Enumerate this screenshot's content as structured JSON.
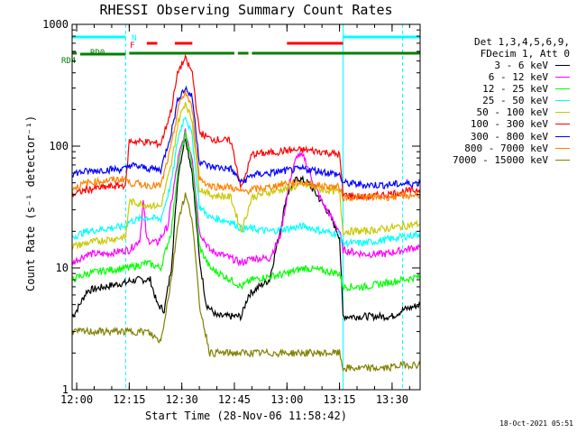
{
  "chart_data": {
    "type": "line",
    "title": "RHESSI Observing Summary Count Rates",
    "xlabel": "Start Time (28-Nov-06 11:58:42)",
    "ylabel": "Count Rate (s⁻¹ detector⁻¹)",
    "y_scale": "log",
    "ylim": [
      1,
      1000
    ],
    "xlim": [
      "11:58:42",
      "13:38:00"
    ],
    "x_ticks": [
      "12:00",
      "12:15",
      "12:30",
      "12:45",
      "13:00",
      "13:15",
      "13:30"
    ],
    "y_ticks": [
      "1",
      "10",
      "100",
      "1000"
    ],
    "legend_header": [
      "Det 1,3,4,5,6,9,",
      "FDecim 1, Att 0"
    ],
    "legend_position": "right, outside plot",
    "series": [
      {
        "name": "3 - 6 keV",
        "color": "#000000",
        "points": [
          [
            "11:58:42",
            4
          ],
          [
            "12:00",
            4.5
          ],
          [
            "12:03",
            6.5
          ],
          [
            "12:08",
            7
          ],
          [
            "12:13",
            7.5
          ],
          [
            "12:14",
            7.5
          ],
          [
            "12:15",
            7.8
          ],
          [
            "12:18",
            8
          ],
          [
            "12:21",
            8
          ],
          [
            "12:23",
            5
          ],
          [
            "12:25",
            4.5
          ],
          [
            "12:27",
            10
          ],
          [
            "12:29",
            60
          ],
          [
            "12:31",
            120
          ],
          [
            "12:33",
            60
          ],
          [
            "12:35",
            12
          ],
          [
            "12:37",
            5
          ],
          [
            "12:40",
            4
          ],
          [
            "12:44",
            4
          ],
          [
            "12:47",
            4
          ],
          [
            "12:49",
            6
          ],
          [
            "12:52",
            7
          ],
          [
            "12:55",
            8
          ],
          [
            "12:58",
            20
          ],
          [
            "13:00",
            40
          ],
          [
            "13:03",
            55
          ],
          [
            "13:06",
            50
          ],
          [
            "13:09",
            38
          ],
          [
            "13:12",
            28
          ],
          [
            "13:15",
            18
          ],
          [
            "13:16",
            4
          ],
          [
            "13:20",
            4
          ],
          [
            "13:25",
            4
          ],
          [
            "13:30",
            4
          ],
          [
            "13:33",
            4.5
          ],
          [
            "13:38",
            5
          ]
        ]
      },
      {
        "name": "6 - 12 keV",
        "color": "#ff00ff",
        "points": [
          [
            "11:58:42",
            11
          ],
          [
            "12:03",
            13
          ],
          [
            "12:08",
            13
          ],
          [
            "12:14",
            14
          ],
          [
            "12:15",
            14
          ],
          [
            "12:18",
            17
          ],
          [
            "12:19",
            35
          ],
          [
            "12:20",
            17
          ],
          [
            "12:23",
            16
          ],
          [
            "12:26",
            22
          ],
          [
            "12:29",
            80
          ],
          [
            "12:31",
            130
          ],
          [
            "12:33",
            80
          ],
          [
            "12:35",
            20
          ],
          [
            "12:38",
            14
          ],
          [
            "12:44",
            12
          ],
          [
            "12:47",
            11
          ],
          [
            "12:50",
            12
          ],
          [
            "12:55",
            12
          ],
          [
            "12:58",
            18
          ],
          [
            "13:01",
            55
          ],
          [
            "13:03",
            85
          ],
          [
            "13:05",
            80
          ],
          [
            "13:07",
            55
          ],
          [
            "13:10",
            35
          ],
          [
            "13:13",
            25
          ],
          [
            "13:15",
            20
          ],
          [
            "13:16",
            14
          ],
          [
            "13:22",
            13
          ],
          [
            "13:28",
            13
          ],
          [
            "13:33",
            14
          ],
          [
            "13:38",
            15
          ]
        ]
      },
      {
        "name": "12 - 25 keV",
        "color": "#00ff00",
        "points": [
          [
            "11:58:42",
            8
          ],
          [
            "12:03",
            9
          ],
          [
            "12:08",
            9.5
          ],
          [
            "12:14",
            10
          ],
          [
            "12:15",
            10
          ],
          [
            "12:20",
            11
          ],
          [
            "12:24",
            10
          ],
          [
            "12:27",
            20
          ],
          [
            "12:29",
            70
          ],
          [
            "12:31",
            125
          ],
          [
            "12:33",
            70
          ],
          [
            "12:35",
            15
          ],
          [
            "12:38",
            10
          ],
          [
            "12:44",
            8
          ],
          [
            "12:47",
            7
          ],
          [
            "12:50",
            8
          ],
          [
            "12:55",
            8.5
          ],
          [
            "13:00",
            9
          ],
          [
            "13:05",
            10
          ],
          [
            "13:10",
            9.5
          ],
          [
            "13:15",
            9
          ],
          [
            "13:16",
            7
          ],
          [
            "13:22",
            7
          ],
          [
            "13:28",
            7.5
          ],
          [
            "13:33",
            8
          ],
          [
            "13:38",
            8.5
          ]
        ]
      },
      {
        "name": "25 - 50 keV",
        "color": "#00ffff",
        "points": [
          [
            "11:58:42",
            18
          ],
          [
            "12:03",
            20
          ],
          [
            "12:08",
            21
          ],
          [
            "12:14",
            22
          ],
          [
            "12:15",
            24
          ],
          [
            "12:20",
            26
          ],
          [
            "12:24",
            25
          ],
          [
            "12:27",
            50
          ],
          [
            "12:29",
            120
          ],
          [
            "12:31",
            180
          ],
          [
            "12:33",
            120
          ],
          [
            "12:35",
            32
          ],
          [
            "12:38",
            26
          ],
          [
            "12:44",
            24
          ],
          [
            "12:47",
            21
          ],
          [
            "12:50",
            21
          ],
          [
            "12:55",
            20
          ],
          [
            "13:00",
            21
          ],
          [
            "13:05",
            22
          ],
          [
            "13:10",
            20
          ],
          [
            "13:15",
            19
          ],
          [
            "13:16",
            16
          ],
          [
            "13:22",
            16
          ],
          [
            "13:28",
            17
          ],
          [
            "13:33",
            18
          ],
          [
            "13:38",
            19
          ]
        ]
      },
      {
        "name": "50 - 100 keV",
        "color": "#c8c800",
        "points": [
          [
            "11:58:42",
            15
          ],
          [
            "12:03",
            16
          ],
          [
            "12:08",
            17
          ],
          [
            "12:14",
            18
          ],
          [
            "12:15",
            35
          ],
          [
            "12:20",
            33
          ],
          [
            "12:24",
            32
          ],
          [
            "12:27",
            70
          ],
          [
            "12:29",
            160
          ],
          [
            "12:31",
            230
          ],
          [
            "12:33",
            160
          ],
          [
            "12:35",
            45
          ],
          [
            "12:38",
            40
          ],
          [
            "12:44",
            38
          ],
          [
            "12:47",
            20
          ],
          [
            "12:50",
            38
          ],
          [
            "12:55",
            42
          ],
          [
            "13:00",
            45
          ],
          [
            "13:05",
            48
          ],
          [
            "13:10",
            44
          ],
          [
            "13:15",
            42
          ],
          [
            "13:16",
            20
          ],
          [
            "13:22",
            20
          ],
          [
            "13:28",
            21
          ],
          [
            "13:33",
            22
          ],
          [
            "13:38",
            23
          ]
        ]
      },
      {
        "name": "100 - 300 keV",
        "color": "#ff0000",
        "points": [
          [
            "11:58:42",
            40
          ],
          [
            "12:03",
            44
          ],
          [
            "12:08",
            46
          ],
          [
            "12:14",
            48
          ],
          [
            "12:15",
            110
          ],
          [
            "12:20",
            108
          ],
          [
            "12:24",
            104
          ],
          [
            "12:27",
            200
          ],
          [
            "12:29",
            420
          ],
          [
            "12:31",
            520
          ],
          [
            "12:33",
            400
          ],
          [
            "12:35",
            130
          ],
          [
            "12:38",
            115
          ],
          [
            "12:44",
            110
          ],
          [
            "12:47",
            45
          ],
          [
            "12:50",
            86
          ],
          [
            "12:55",
            88
          ],
          [
            "13:00",
            92
          ],
          [
            "13:05",
            93
          ],
          [
            "13:10",
            90
          ],
          [
            "13:15",
            85
          ],
          [
            "13:16",
            40
          ],
          [
            "13:22",
            38
          ],
          [
            "13:28",
            40
          ],
          [
            "13:33",
            42
          ],
          [
            "13:38",
            44
          ]
        ]
      },
      {
        "name": "300 - 800 keV",
        "color": "#0000ff",
        "points": [
          [
            "11:58:42",
            60
          ],
          [
            "12:03",
            62
          ],
          [
            "12:08",
            64
          ],
          [
            "12:14",
            65
          ],
          [
            "12:15",
            70
          ],
          [
            "12:20",
            66
          ],
          [
            "12:24",
            64
          ],
          [
            "12:27",
            130
          ],
          [
            "12:29",
            250
          ],
          [
            "12:31",
            300
          ],
          [
            "12:33",
            250
          ],
          [
            "12:35",
            75
          ],
          [
            "12:38",
            68
          ],
          [
            "12:44",
            65
          ],
          [
            "12:47",
            50
          ],
          [
            "12:50",
            58
          ],
          [
            "12:55",
            60
          ],
          [
            "13:00",
            63
          ],
          [
            "13:05",
            65
          ],
          [
            "13:10",
            62
          ],
          [
            "13:15",
            58
          ],
          [
            "13:16",
            50
          ],
          [
            "13:22",
            48
          ],
          [
            "13:28",
            48
          ],
          [
            "13:33",
            49
          ],
          [
            "13:38",
            50
          ]
        ]
      },
      {
        "name": "800 - 7000 keV",
        "color": "#ff8000",
        "points": [
          [
            "11:58:42",
            45
          ],
          [
            "12:03",
            50
          ],
          [
            "12:08",
            52
          ],
          [
            "12:14",
            54
          ],
          [
            "12:15",
            50
          ],
          [
            "12:20",
            48
          ],
          [
            "12:24",
            47
          ],
          [
            "12:27",
            100
          ],
          [
            "12:29",
            210
          ],
          [
            "12:31",
            280
          ],
          [
            "12:33",
            200
          ],
          [
            "12:35",
            55
          ],
          [
            "12:38",
            47
          ],
          [
            "12:44",
            46
          ],
          [
            "12:47",
            42
          ],
          [
            "12:50",
            44
          ],
          [
            "12:55",
            46
          ],
          [
            "13:00",
            50
          ],
          [
            "13:05",
            50
          ],
          [
            "13:10",
            47
          ],
          [
            "13:15",
            46
          ],
          [
            "13:16",
            38
          ],
          [
            "13:22",
            38
          ],
          [
            "13:28",
            38
          ],
          [
            "13:33",
            39
          ],
          [
            "13:38",
            40
          ]
        ]
      },
      {
        "name": "7000 - 15000 keV",
        "color": "#808000",
        "points": [
          [
            "11:58:42",
            3
          ],
          [
            "12:03",
            3
          ],
          [
            "12:08",
            3
          ],
          [
            "12:14",
            3
          ],
          [
            "12:15",
            3
          ],
          [
            "12:20",
            3
          ],
          [
            "12:24",
            2.5
          ],
          [
            "12:27",
            8
          ],
          [
            "12:29",
            25
          ],
          [
            "12:31",
            40
          ],
          [
            "12:33",
            25
          ],
          [
            "12:35",
            5
          ],
          [
            "12:38",
            2
          ],
          [
            "12:44",
            2
          ],
          [
            "12:47",
            2
          ],
          [
            "12:50",
            2
          ],
          [
            "12:55",
            2
          ],
          [
            "13:00",
            2
          ],
          [
            "13:05",
            2
          ],
          [
            "13:10",
            2
          ],
          [
            "13:15",
            2
          ],
          [
            "13:16",
            1.5
          ],
          [
            "13:22",
            1.5
          ],
          [
            "13:28",
            1.5
          ],
          [
            "13:33",
            1.6
          ],
          [
            "13:38",
            1.6
          ]
        ]
      }
    ],
    "flag_bars": [
      {
        "label": "N",
        "color": "#00ffff",
        "segments": [
          [
            "11:58:42",
            "12:14"
          ],
          [
            "13:16",
            "13:38"
          ]
        ]
      },
      {
        "label": "F",
        "color": "#ff0000",
        "segments": [
          [
            "12:20",
            "12:23"
          ],
          [
            "12:28",
            "12:33"
          ],
          [
            "13:00",
            "13:16"
          ]
        ]
      },
      {
        "label": "RD0",
        "color": "#008000",
        "segments": [
          [
            "12:01",
            "12:14"
          ]
        ]
      },
      {
        "label": "RD4",
        "color": "#008000",
        "segments": [
          [
            "11:58:42",
            "12:00"
          ],
          [
            "12:15",
            "12:45"
          ],
          [
            "12:46",
            "12:49"
          ],
          [
            "12:50",
            "13:38"
          ]
        ]
      }
    ],
    "vertical_markers": [
      {
        "time": "11:58:42",
        "style": "solid",
        "color": "#00ffff"
      },
      {
        "time": "12:14",
        "style": "dashed",
        "color": "#00ffff"
      },
      {
        "time": "13:16",
        "style": "solid",
        "color": "#00ffff"
      },
      {
        "time": "13:33",
        "style": "dashed",
        "color": "#00ffff"
      }
    ],
    "timestamp": "18-Oct-2021 05:51"
  }
}
